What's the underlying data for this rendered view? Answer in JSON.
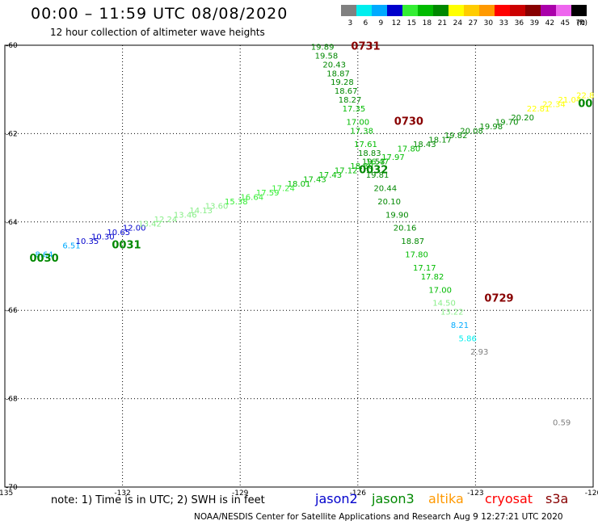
{
  "header": {
    "title": "00:00 – 11:59 UTC 08/08/2020",
    "subtitle": "12 hour collection of altimeter wave heights"
  },
  "legend": {
    "unit": "(ft)",
    "bins": [
      {
        "label": "3",
        "color": "#808080"
      },
      {
        "label": "6",
        "color": "#00eeee"
      },
      {
        "label": "9",
        "color": "#00aaff"
      },
      {
        "label": "12",
        "color": "#0000cc"
      },
      {
        "label": "15",
        "color": "#33ee33"
      },
      {
        "label": "18",
        "color": "#00bb00"
      },
      {
        "label": "21",
        "color": "#008800"
      },
      {
        "label": "24",
        "color": "#ffff00"
      },
      {
        "label": "27",
        "color": "#ffcc00"
      },
      {
        "label": "30",
        "color": "#ff9900"
      },
      {
        "label": "33",
        "color": "#ff0000"
      },
      {
        "label": "36",
        "color": "#cc0000"
      },
      {
        "label": "39",
        "color": "#880000"
      },
      {
        "label": "42",
        "color": "#aa00aa"
      },
      {
        "label": "45",
        "color": "#ee66ee"
      },
      {
        "label": "70",
        "color": "#000000"
      }
    ]
  },
  "chart_data": {
    "type": "scatter",
    "lon_ticks": [
      "-135",
      "-132",
      "-129",
      "-126",
      "-123",
      "-120"
    ],
    "lat_ticks": [
      "-60",
      "-62",
      "-64",
      "-66",
      "-68",
      "-70"
    ],
    "xlim": [
      -135,
      -120
    ],
    "ylim": [
      -70,
      -60
    ],
    "grid": true,
    "tracks": [
      {
        "name": "track-southward",
        "color": "#008800",
        "points": [
          {
            "lon": -126.9,
            "lat": -60.1,
            "v": "19.89",
            "c": "#008800"
          },
          {
            "lon": -126.8,
            "lat": -60.3,
            "v": "19.58",
            "c": "#008800"
          },
          {
            "lon": -126.6,
            "lat": -60.5,
            "v": "20.43",
            "c": "#008800"
          },
          {
            "lon": -126.5,
            "lat": -60.7,
            "v": "18.87",
            "c": "#008800"
          },
          {
            "lon": -126.4,
            "lat": -60.9,
            "v": "19.28",
            "c": "#008800"
          },
          {
            "lon": -126.3,
            "lat": -61.1,
            "v": "18.67",
            "c": "#008800"
          },
          {
            "lon": -126.2,
            "lat": -61.3,
            "v": "18.27",
            "c": "#008800"
          },
          {
            "lon": -126.1,
            "lat": -61.5,
            "v": "17.35",
            "c": "#00bb00"
          },
          {
            "lon": -126.0,
            "lat": -61.8,
            "v": "17.00",
            "c": "#00bb00"
          },
          {
            "lon": -125.9,
            "lat": -62.0,
            "v": "17.38",
            "c": "#00bb00"
          },
          {
            "lon": -125.8,
            "lat": -62.3,
            "v": "17.61",
            "c": "#00bb00"
          },
          {
            "lon": -125.7,
            "lat": -62.5,
            "v": "18.83",
            "c": "#008800"
          },
          {
            "lon": -125.6,
            "lat": -62.7,
            "v": "19.53",
            "c": "#008800"
          },
          {
            "lon": -125.5,
            "lat": -63.0,
            "v": "19.81",
            "c": "#008800"
          },
          {
            "lon": -125.3,
            "lat": -63.3,
            "v": "20.44",
            "c": "#008800"
          },
          {
            "lon": -125.2,
            "lat": -63.6,
            "v": "20.10",
            "c": "#008800"
          },
          {
            "lon": -125.0,
            "lat": -63.9,
            "v": "19.90",
            "c": "#008800"
          },
          {
            "lon": -124.8,
            "lat": -64.2,
            "v": "20.16",
            "c": "#008800"
          },
          {
            "lon": -124.6,
            "lat": -64.5,
            "v": "18.87",
            "c": "#008800"
          },
          {
            "lon": -124.5,
            "lat": -64.8,
            "v": "17.80",
            "c": "#00bb00"
          },
          {
            "lon": -124.3,
            "lat": -65.1,
            "v": "17.17",
            "c": "#00bb00"
          },
          {
            "lon": -124.1,
            "lat": -65.3,
            "v": "17.82",
            "c": "#00bb00"
          },
          {
            "lon": -123.9,
            "lat": -65.6,
            "v": "17.00",
            "c": "#00bb00"
          },
          {
            "lon": -123.8,
            "lat": -65.9,
            "v": "14.50",
            "c": "#88ee88"
          },
          {
            "lon": -123.6,
            "lat": -66.1,
            "v": "13.22",
            "c": "#88ee88"
          },
          {
            "lon": -123.4,
            "lat": -66.4,
            "v": "8.21",
            "c": "#00aaff"
          },
          {
            "lon": -123.2,
            "lat": -66.7,
            "v": "5.86",
            "c": "#00eeee"
          },
          {
            "lon": -122.9,
            "lat": -67.0,
            "v": "2.93",
            "c": "#808080"
          },
          {
            "lon": -120.8,
            "lat": -68.6,
            "v": "0.59",
            "c": "#808080"
          }
        ],
        "times": [
          {
            "lon": -125.8,
            "lat": -60.1,
            "t": "0731",
            "c": "#880000"
          },
          {
            "lon": -124.7,
            "lat": -61.8,
            "t": "0730",
            "c": "#880000"
          },
          {
            "lon": -122.4,
            "lat": -65.8,
            "t": "0729",
            "c": "#880000"
          }
        ]
      },
      {
        "name": "track-northeastward",
        "color": "#00bb00",
        "points": [
          {
            "lon": -134.0,
            "lat": -64.8,
            "v": "8.64",
            "c": "#00aaff"
          },
          {
            "lon": -133.3,
            "lat": -64.6,
            "v": "6.51",
            "c": "#00aaff"
          },
          {
            "lon": -132.9,
            "lat": -64.5,
            "v": "10.35",
            "c": "#0000cc"
          },
          {
            "lon": -132.5,
            "lat": -64.4,
            "v": "10.30",
            "c": "#0000cc"
          },
          {
            "lon": -132.1,
            "lat": -64.3,
            "v": "10.65",
            "c": "#0000cc"
          },
          {
            "lon": -131.7,
            "lat": -64.2,
            "v": "12.00",
            "c": "#0000cc"
          },
          {
            "lon": -131.3,
            "lat": -64.1,
            "v": "13.42",
            "c": "#88ee88"
          },
          {
            "lon": -130.9,
            "lat": -64.0,
            "v": "12.24",
            "c": "#88ee88"
          },
          {
            "lon": -130.4,
            "lat": -63.9,
            "v": "13.46",
            "c": "#88ee88"
          },
          {
            "lon": -130.0,
            "lat": -63.8,
            "v": "14.13",
            "c": "#88ee88"
          },
          {
            "lon": -129.6,
            "lat": -63.7,
            "v": "13.60",
            "c": "#88ee88"
          },
          {
            "lon": -129.1,
            "lat": -63.6,
            "v": "15.38",
            "c": "#33ee33"
          },
          {
            "lon": -128.7,
            "lat": -63.5,
            "v": "16.64",
            "c": "#33ee33"
          },
          {
            "lon": -128.3,
            "lat": -63.4,
            "v": "17.59",
            "c": "#33ee33"
          },
          {
            "lon": -127.9,
            "lat": -63.3,
            "v": "17.24",
            "c": "#33ee33"
          },
          {
            "lon": -127.5,
            "lat": -63.2,
            "v": "18.01",
            "c": "#00bb00"
          },
          {
            "lon": -127.1,
            "lat": -63.1,
            "v": "17.43",
            "c": "#00bb00"
          },
          {
            "lon": -126.7,
            "lat": -63.0,
            "v": "17.43",
            "c": "#00bb00"
          },
          {
            "lon": -126.3,
            "lat": -62.9,
            "v": "17.12",
            "c": "#00bb00"
          },
          {
            "lon": -125.9,
            "lat": -62.8,
            "v": "18.80",
            "c": "#00bb00"
          },
          {
            "lon": -125.5,
            "lat": -62.7,
            "v": "16.47",
            "c": "#00bb00"
          },
          {
            "lon": -125.1,
            "lat": -62.6,
            "v": "17.97",
            "c": "#00bb00"
          },
          {
            "lon": -124.7,
            "lat": -62.4,
            "v": "17.80",
            "c": "#00bb00"
          },
          {
            "lon": -124.3,
            "lat": -62.3,
            "v": "18.43",
            "c": "#008800"
          },
          {
            "lon": -123.9,
            "lat": -62.2,
            "v": "18.17",
            "c": "#008800"
          },
          {
            "lon": -123.5,
            "lat": -62.1,
            "v": "19.82",
            "c": "#008800"
          },
          {
            "lon": -123.1,
            "lat": -62.0,
            "v": "20.08",
            "c": "#008800"
          },
          {
            "lon": -122.6,
            "lat": -61.9,
            "v": "19.98",
            "c": "#008800"
          },
          {
            "lon": -122.2,
            "lat": -61.8,
            "v": "19.70",
            "c": "#008800"
          },
          {
            "lon": -121.8,
            "lat": -61.7,
            "v": "20.20",
            "c": "#008800"
          },
          {
            "lon": -121.4,
            "lat": -61.5,
            "v": "22.81",
            "c": "#ffff00"
          },
          {
            "lon": -121.0,
            "lat": -61.4,
            "v": "22.34",
            "c": "#ffff00"
          },
          {
            "lon": -120.6,
            "lat": -61.3,
            "v": "21.04",
            "c": "#ffff00"
          },
          {
            "lon": -120.2,
            "lat": -61.2,
            "v": "22.8",
            "c": "#ffff00"
          }
        ],
        "times": [
          {
            "lon": -134.0,
            "lat": -64.9,
            "t": "0030",
            "c": "#008800"
          },
          {
            "lon": -131.9,
            "lat": -64.6,
            "t": "0031",
            "c": "#008800"
          },
          {
            "lon": -125.6,
            "lat": -62.9,
            "t": "0032",
            "c": "#008800"
          },
          {
            "lon": -120.2,
            "lat": -61.4,
            "t": "00",
            "c": "#008800"
          }
        ]
      }
    ]
  },
  "footer": {
    "note": "note:  1) Time is in UTC;  2) SWH is in feet",
    "satellites": [
      {
        "name": "jason2",
        "color": "#0000cc"
      },
      {
        "name": "jason3",
        "color": "#008800"
      },
      {
        "name": "altika",
        "color": "#ff9900"
      },
      {
        "name": "cryosat",
        "color": "#ff0000"
      },
      {
        "name": "s3a",
        "color": "#880000"
      }
    ],
    "credit": "NOAA/NESDIS Center for Satellite Applications and Research     Aug  9 12:27:21 UTC 2020"
  }
}
